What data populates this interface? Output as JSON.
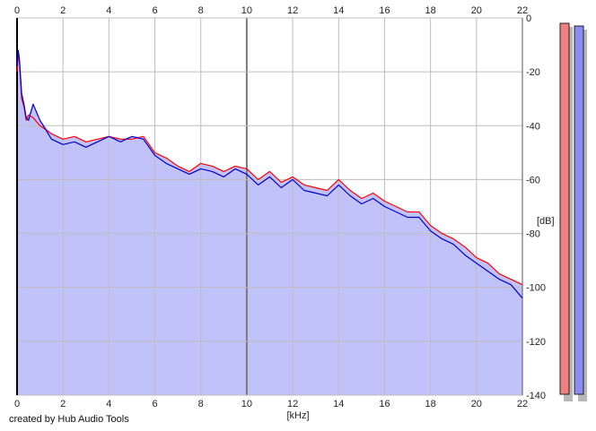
{
  "app": {
    "credit": "created by Hub Audio Tools"
  },
  "colors": {
    "background": "#ffffff",
    "grid": "#bdbdbd",
    "grid_major": "#7a7a7a",
    "fill": "#c2c2fb",
    "left_channel": "#ff0000",
    "right_channel": "#0000cc",
    "meter_left": "#f08080",
    "meter_right": "#8c8cf0",
    "meter_shadow": "#b8b8b8"
  },
  "chart_data": {
    "type": "line",
    "title": "",
    "xlabel": "[kHz]",
    "ylabel": "[dB]",
    "xlim": [
      0,
      22
    ],
    "ylim": [
      -140,
      0
    ],
    "x_ticks": [
      0,
      2,
      4,
      6,
      8,
      10,
      12,
      14,
      16,
      18,
      20,
      22
    ],
    "y_ticks": [
      0,
      -20,
      -40,
      -60,
      -80,
      -100,
      -120,
      -140
    ],
    "grid": true,
    "filled_under_series": true,
    "series": [
      {
        "color": "#ff0000",
        "x": [
          0,
          0.05,
          0.1,
          0.2,
          0.3,
          0.4,
          0.5,
          0.7,
          1,
          1.5,
          2,
          2.5,
          3,
          3.5,
          4,
          4.5,
          5,
          5.5,
          6,
          6.5,
          7,
          7.5,
          8,
          8.5,
          9,
          9.5,
          10,
          10.5,
          11,
          11.5,
          12,
          12.5,
          13,
          13.5,
          14,
          14.5,
          15,
          15.5,
          16,
          16.5,
          17,
          17.5,
          18,
          18.5,
          19,
          19.5,
          20,
          20.5,
          21,
          21.5,
          22
        ],
        "values": [
          -20,
          -14,
          -16,
          -30,
          -33,
          -38,
          -36,
          -37,
          -40,
          -43,
          -45,
          -44,
          -46,
          -45,
          -44,
          -45,
          -45,
          -44,
          -50,
          -52,
          -55,
          -57,
          -54,
          -55,
          -57,
          -55,
          -56,
          -60,
          -57,
          -61,
          -59,
          -62,
          -63,
          -64,
          -60,
          -64,
          -67,
          -65,
          -68,
          -70,
          -72,
          -72,
          -77,
          -80,
          -82,
          -85,
          -89,
          -91,
          -95,
          -97,
          -99
        ]
      },
      {
        "color": "#0000cc",
        "x": [
          0,
          0.05,
          0.1,
          0.2,
          0.3,
          0.4,
          0.5,
          0.7,
          1,
          1.5,
          2,
          2.5,
          3,
          3.5,
          4,
          4.5,
          5,
          5.5,
          6,
          6.5,
          7,
          7.5,
          8,
          8.5,
          9,
          9.5,
          10,
          10.5,
          11,
          11.5,
          12,
          12.5,
          13,
          13.5,
          14,
          14.5,
          15,
          15.5,
          16,
          16.5,
          17,
          17.5,
          18,
          18.5,
          19,
          19.5,
          20,
          20.5,
          21,
          21.5,
          22
        ],
        "values": [
          -18,
          -12,
          -15,
          -28,
          -32,
          -37,
          -38,
          -32,
          -38,
          -45,
          -47,
          -46,
          -48,
          -46,
          -44,
          -46,
          -44,
          -45,
          -51,
          -54,
          -56,
          -58,
          -56,
          -57,
          -59,
          -56,
          -58,
          -62,
          -59,
          -63,
          -60,
          -64,
          -65,
          -66,
          -62,
          -66,
          -69,
          -67,
          -70,
          -72,
          -74,
          -74,
          -79,
          -82,
          -84,
          -88,
          -91,
          -94,
          -97,
          -99,
          -104
        ]
      }
    ],
    "level_meters": [
      {
        "color": "#f08080",
        "level_db": -2
      },
      {
        "color": "#8c8cf0",
        "level_db": -3
      }
    ]
  }
}
